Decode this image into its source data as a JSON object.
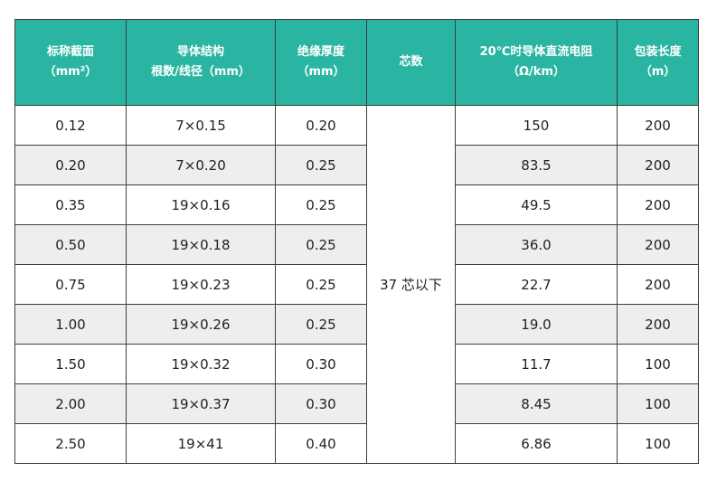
{
  "colors": {
    "header_bg": "#2ab5a2",
    "header_text": "#ffffff",
    "stripe": "#eeeeee",
    "border": "#3f3f3f"
  },
  "headers": [
    {
      "line1": "标称截面",
      "line2": "（mm²）"
    },
    {
      "line1": "导体结构",
      "line2": "根数/线径（mm）"
    },
    {
      "line1": "绝缘厚度",
      "line2": "（mm）"
    },
    {
      "line1": "芯数",
      "line2": ""
    },
    {
      "line1": "20℃时导体直流电阻",
      "line2": "（Ω/km）"
    },
    {
      "line1": "包装长度",
      "line2": "（m）"
    }
  ],
  "core_count": "37 芯以下",
  "rows": [
    {
      "section": "0.12",
      "structure": "7×0.15",
      "insulation": "0.20",
      "resistance": "150",
      "length": "200"
    },
    {
      "section": "0.20",
      "structure": "7×0.20",
      "insulation": "0.25",
      "resistance": "83.5",
      "length": "200"
    },
    {
      "section": "0.35",
      "structure": "19×0.16",
      "insulation": "0.25",
      "resistance": "49.5",
      "length": "200"
    },
    {
      "section": "0.50",
      "structure": "19×0.18",
      "insulation": "0.25",
      "resistance": "36.0",
      "length": "200"
    },
    {
      "section": "0.75",
      "structure": "19×0.23",
      "insulation": "0.25",
      "resistance": "22.7",
      "length": "200"
    },
    {
      "section": "1.00",
      "structure": "19×0.26",
      "insulation": "0.25",
      "resistance": "19.0",
      "length": "200"
    },
    {
      "section": "1.50",
      "structure": "19×0.32",
      "insulation": "0.30",
      "resistance": "11.7",
      "length": "100"
    },
    {
      "section": "2.00",
      "structure": "19×0.37",
      "insulation": "0.30",
      "resistance": "8.45",
      "length": "100"
    },
    {
      "section": "2.50",
      "structure": "19×41",
      "insulation": "0.40",
      "resistance": "6.86",
      "length": "100"
    }
  ]
}
